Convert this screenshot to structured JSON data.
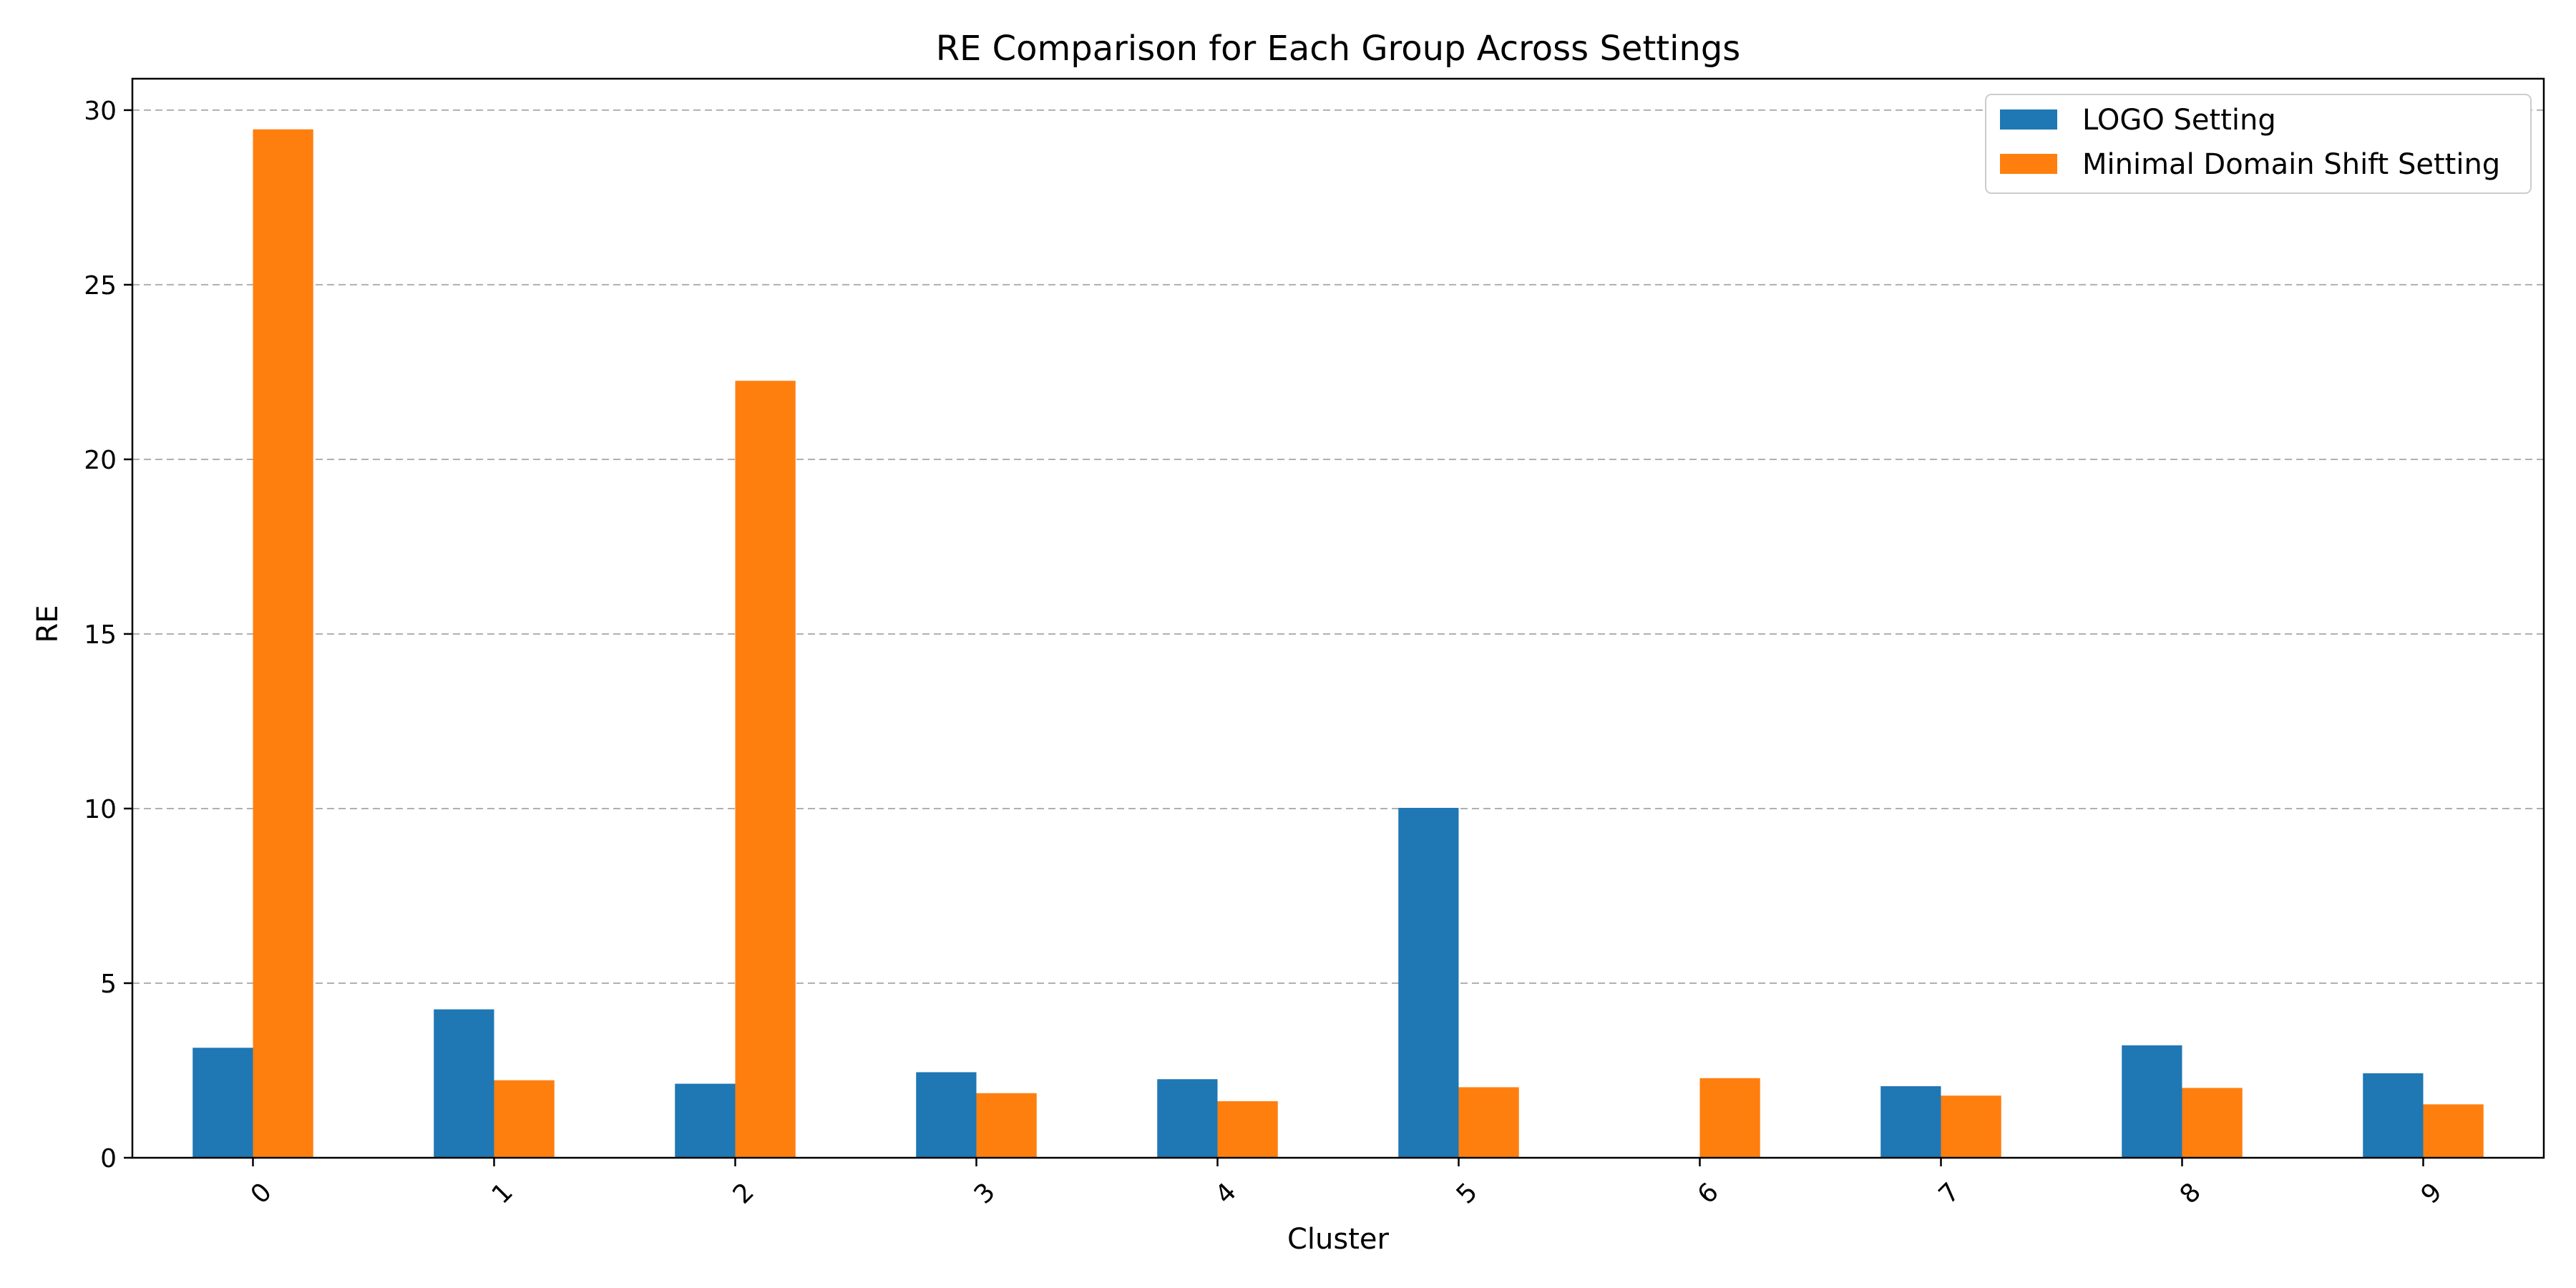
{
  "chart_data": {
    "type": "bar",
    "title": "RE Comparison for Each Group Across Settings",
    "xlabel": "Cluster",
    "ylabel": "RE",
    "categories": [
      "0",
      "1",
      "2",
      "3",
      "4",
      "5",
      "6",
      "7",
      "8",
      "9"
    ],
    "series": [
      {
        "name": "LOGO Setting",
        "color": "#1f77b4",
        "values": [
          3.15,
          4.25,
          2.12,
          2.45,
          2.25,
          10.02,
          0,
          2.05,
          3.22,
          2.42
        ]
      },
      {
        "name": "Minimal Domain Shift Setting",
        "color": "#ff7f0e",
        "values": [
          29.45,
          2.22,
          22.25,
          1.85,
          1.62,
          2.02,
          2.28,
          1.78,
          2.0,
          1.53
        ]
      }
    ],
    "ylim": [
      0,
      30.9
    ],
    "yticks": [
      0,
      5,
      10,
      15,
      20,
      25,
      30
    ],
    "grid": "y-dashed",
    "legend": "top-right"
  }
}
